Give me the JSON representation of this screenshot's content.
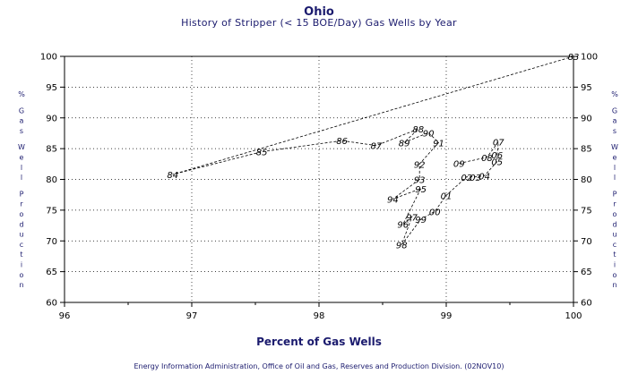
{
  "titles": {
    "title": "Ohio",
    "subtitle": "History of Stripper (< 15 BOE/Day) Gas Wells by Year"
  },
  "footer": "Energy Information Administration, Office of Oil and Gas, Reserves and Production Division. (02NOV10)",
  "colors": {
    "text": "#1b1b6e",
    "line": "#000000",
    "grid": "#000000"
  },
  "chart_data": {
    "type": "line",
    "title": "Ohio",
    "subtitle": "History of Stripper (< 15 BOE/Day) Gas Wells by Year",
    "xlabel": "Percent of Gas Wells",
    "ylabel": "% Gas Well Production",
    "xlim": [
      96,
      100
    ],
    "ylim": [
      60,
      100
    ],
    "xticks": [
      96,
      97,
      98,
      99,
      100
    ],
    "yticks": [
      60,
      65,
      70,
      75,
      80,
      85,
      90,
      95,
      100
    ],
    "grid": true,
    "points": [
      {
        "label": "83",
        "x": 100.0,
        "y": 100.0
      },
      {
        "label": "84",
        "x": 96.85,
        "y": 80.8
      },
      {
        "label": "85",
        "x": 97.55,
        "y": 84.5
      },
      {
        "label": "86",
        "x": 98.18,
        "y": 86.3
      },
      {
        "label": "87",
        "x": 98.45,
        "y": 85.5
      },
      {
        "label": "88",
        "x": 98.78,
        "y": 88.2
      },
      {
        "label": "89",
        "x": 98.67,
        "y": 86.0
      },
      {
        "label": "90",
        "x": 98.86,
        "y": 87.6
      },
      {
        "label": "91",
        "x": 98.94,
        "y": 86.0
      },
      {
        "label": "92",
        "x": 98.79,
        "y": 82.5
      },
      {
        "label": "93",
        "x": 98.79,
        "y": 80.0
      },
      {
        "label": "94",
        "x": 98.58,
        "y": 76.8
      },
      {
        "label": "95",
        "x": 98.8,
        "y": 78.5
      },
      {
        "label": "96",
        "x": 98.66,
        "y": 72.7
      },
      {
        "label": "97",
        "x": 98.73,
        "y": 73.9
      },
      {
        "label": "98",
        "x": 98.65,
        "y": 69.4
      },
      {
        "label": "99",
        "x": 98.8,
        "y": 73.5
      },
      {
        "label": "00",
        "x": 98.91,
        "y": 74.8
      },
      {
        "label": "01",
        "x": 99.0,
        "y": 77.4
      },
      {
        "label": "02",
        "x": 99.16,
        "y": 80.4
      },
      {
        "label": "03",
        "x": 99.23,
        "y": 80.4
      },
      {
        "label": "04",
        "x": 99.3,
        "y": 80.6
      },
      {
        "label": "05",
        "x": 99.4,
        "y": 82.9
      },
      {
        "label": "06",
        "x": 99.4,
        "y": 84.0
      },
      {
        "label": "07",
        "x": 99.41,
        "y": 86.1
      },
      {
        "label": "08",
        "x": 99.32,
        "y": 83.6
      },
      {
        "label": "09",
        "x": 99.1,
        "y": 82.6
      }
    ]
  }
}
